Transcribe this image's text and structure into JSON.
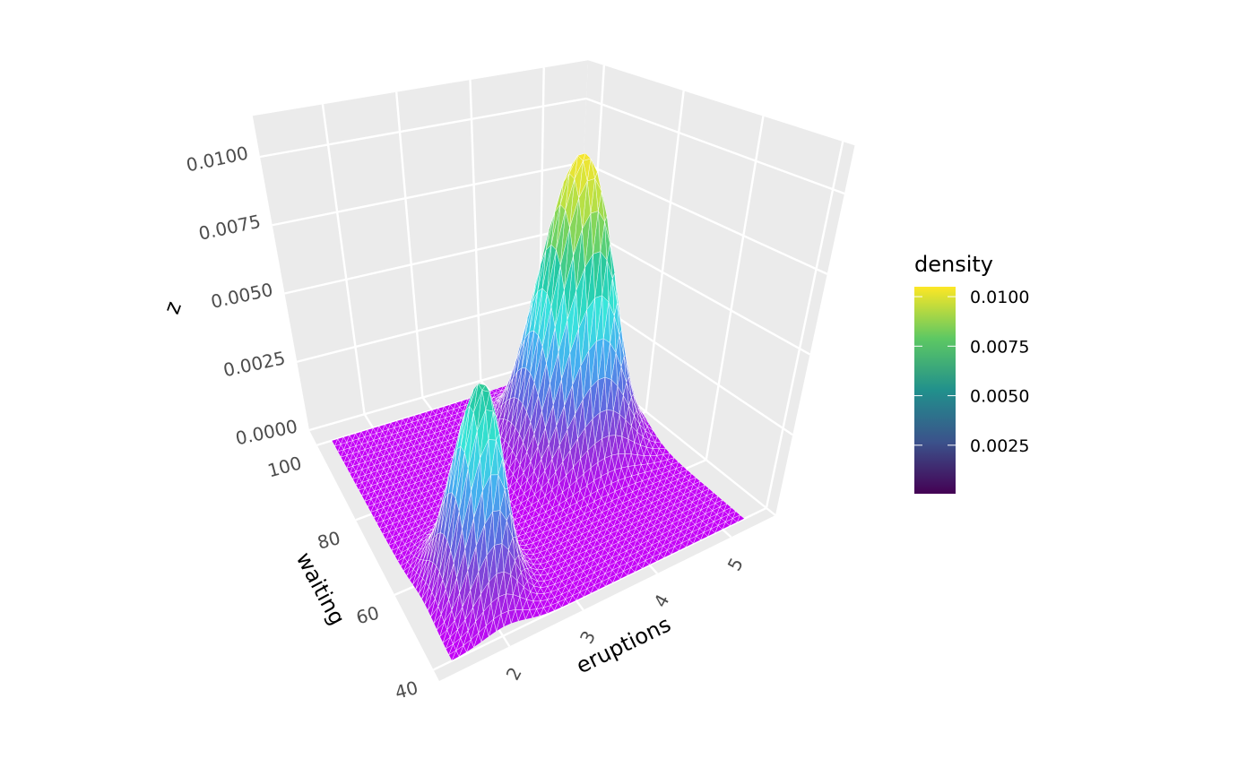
{
  "chart_data": {
    "type": "surface3d",
    "title": "",
    "xlabel": "eruptions",
    "ylabel": "waiting",
    "zlabel": "z",
    "x_range": [
      1.05,
      5.6
    ],
    "y_range": [
      37,
      104
    ],
    "z_range": [
      0,
      0.0115
    ],
    "surface_x_range": [
      1.3,
      5.3
    ],
    "surface_y_range": [
      40,
      100
    ],
    "x_ticks": [
      "2",
      "3",
      "4",
      "5"
    ],
    "x_tick_values": [
      2,
      3,
      4,
      5
    ],
    "y_ticks": [
      "40",
      "60",
      "80",
      "100"
    ],
    "y_tick_values": [
      40,
      60,
      80,
      100
    ],
    "z_ticks": [
      "0.0000",
      "0.0025",
      "0.0050",
      "0.0075",
      "0.0100"
    ],
    "z_tick_values": [
      0,
      0.0025,
      0.005,
      0.0075,
      0.01
    ],
    "modes": [
      {
        "eruptions": 4.35,
        "waiting": 80,
        "density": 0.0103,
        "sd_eruptions": 0.42,
        "sd_waiting": 6.5
      },
      {
        "eruptions": 2.03,
        "waiting": 54.5,
        "density": 0.0068,
        "sd_eruptions": 0.28,
        "sd_waiting": 5.8
      }
    ],
    "surface_colors": [
      "#c400f7",
      "#8a3ad6",
      "#5a6ee0",
      "#45aef0",
      "#38e6dc",
      "#22c8a2",
      "#72d262",
      "#c4e240",
      "#fbe62e"
    ],
    "legend": {
      "title": "density",
      "position": "right",
      "ticks": [
        "0.0100",
        "0.0075",
        "0.0050",
        "0.0025"
      ],
      "tick_values": [
        0.01,
        0.0075,
        0.005,
        0.0025
      ],
      "limits": [
        5e-05,
        0.0105
      ],
      "colors": [
        "#440154",
        "#3b528b",
        "#21908c",
        "#5dc863",
        "#fde725"
      ]
    },
    "panel_color": "#ebebeb",
    "grid_color": "#ffffff"
  }
}
